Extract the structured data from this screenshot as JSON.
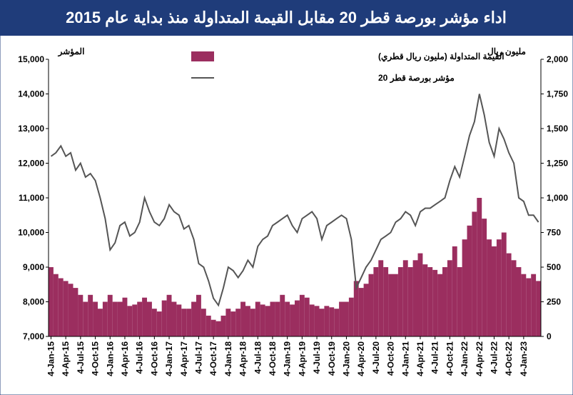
{
  "chart_data": {
    "type": "combo",
    "title": "اداء مؤشر بورصة قطر 20 مقابل القيمة المتداولة منذ بداية عام 2015",
    "y_label": "المؤشر",
    "y2_label": "مليون ريال",
    "categories": [
      "4-Jan-15",
      null,
      null,
      "4-Apr-15",
      null,
      null,
      "4-Jul-15",
      null,
      null,
      "4-Oct-15",
      null,
      null,
      "4-Jan-16",
      null,
      null,
      "4-Apr-16",
      null,
      null,
      "4-Jul-16",
      null,
      null,
      "4-Oct-16",
      null,
      null,
      "4-Jan-17",
      null,
      null,
      "4-Apr-17",
      null,
      null,
      "4-Jul-17",
      null,
      null,
      "4-Oct-17",
      null,
      null,
      "4-Jan-18",
      null,
      null,
      "4-Apr-18",
      null,
      null,
      "4-Jul-18",
      null,
      null,
      "4-Oct-18",
      null,
      null,
      "4-Jan-19",
      null,
      null,
      "4-Apr-19",
      null,
      null,
      "4-Jul-19",
      null,
      null,
      "4-Oct-19",
      null,
      null,
      "4-Jan-20",
      null,
      null,
      "4-Apr-20",
      null,
      null,
      "4-Jul-20",
      null,
      null,
      "4-Oct-20",
      null,
      null,
      "4-Jan-21",
      null,
      null,
      "4-Apr-21",
      null,
      null,
      "4-Jul-21",
      null,
      null,
      "4-Oct-21",
      null,
      null,
      "4-Jan-22",
      null,
      null,
      "4-Apr-22",
      null,
      null,
      "4-Jul-22",
      null,
      null,
      "4-Oct-22",
      null,
      null,
      "4-Jan-23",
      null,
      null,
      null
    ],
    "series": [
      {
        "name": "القيمة المتداولة (مليون ريال قطري)",
        "type": "bar",
        "axis": "y2",
        "color": "#9b2e5f",
        "values": [
          500,
          450,
          420,
          400,
          380,
          350,
          300,
          250,
          300,
          250,
          200,
          250,
          300,
          250,
          250,
          280,
          220,
          230,
          250,
          280,
          250,
          200,
          180,
          260,
          300,
          250,
          230,
          200,
          200,
          250,
          300,
          200,
          150,
          120,
          110,
          150,
          200,
          180,
          200,
          250,
          220,
          200,
          250,
          230,
          220,
          250,
          250,
          300,
          250,
          230,
          260,
          300,
          280,
          230,
          220,
          200,
          220,
          210,
          200,
          250,
          250,
          280,
          400,
          350,
          380,
          450,
          500,
          550,
          500,
          450,
          450,
          500,
          550,
          500,
          550,
          600,
          520,
          500,
          480,
          450,
          500,
          550,
          650,
          500,
          700,
          800,
          900,
          1000,
          850,
          700,
          650,
          700,
          750,
          600,
          550,
          500,
          450,
          420,
          450,
          400
        ]
      },
      {
        "name": "مؤشر بورصة قطر 20",
        "type": "line",
        "color": "#555555",
        "values": [
          12200,
          12300,
          12500,
          12200,
          12300,
          11800,
          12000,
          11600,
          11700,
          11500,
          11000,
          10400,
          9500,
          9700,
          10200,
          10300,
          9900,
          10000,
          10300,
          11000,
          10600,
          10300,
          10200,
          10400,
          10800,
          10600,
          10500,
          10100,
          10200,
          9800,
          9100,
          9000,
          8600,
          8100,
          7900,
          8400,
          9000,
          8900,
          8700,
          8900,
          9200,
          9000,
          9600,
          9800,
          9900,
          10200,
          10300,
          10400,
          10500,
          10200,
          10000,
          10400,
          10500,
          10600,
          10400,
          9800,
          10200,
          10300,
          10400,
          10500,
          10400,
          9800,
          8400,
          8700,
          9000,
          9200,
          9500,
          9800,
          9900,
          10000,
          10300,
          10400,
          10600,
          10500,
          10200,
          10600,
          10700,
          10700,
          10800,
          10900,
          11000,
          11500,
          11900,
          11600,
          12200,
          12800,
          13200,
          14000,
          13400,
          12600,
          12200,
          13000,
          12700,
          12300,
          12000,
          11000,
          10900,
          10500,
          10500,
          10300
        ]
      }
    ],
    "ylim": [
      7000,
      15000
    ],
    "yticks": [
      {
        "value": 7000,
        "label": "7,000"
      },
      {
        "value": 8000,
        "label": "8,000"
      },
      {
        "value": 9000,
        "label": "9,000"
      },
      {
        "value": 10000,
        "label": "10,000"
      },
      {
        "value": 11000,
        "label": "11,000"
      },
      {
        "value": 12000,
        "label": "12,000"
      },
      {
        "value": 13000,
        "label": "13,000"
      },
      {
        "value": 14000,
        "label": "14,000"
      },
      {
        "value": 15000,
        "label": "15,000"
      }
    ],
    "y2lim": [
      0,
      2000
    ],
    "y2ticks": [
      0,
      250,
      500,
      750,
      {
        "value": 1000,
        "label": "1,000"
      },
      {
        "value": 1250,
        "label": "1,250"
      },
      {
        "value": 1500,
        "label": "1,500"
      },
      {
        "value": 1750,
        "label": "1,750"
      },
      {
        "value": 2000,
        "label": "2,000"
      }
    ],
    "legend": "top"
  }
}
